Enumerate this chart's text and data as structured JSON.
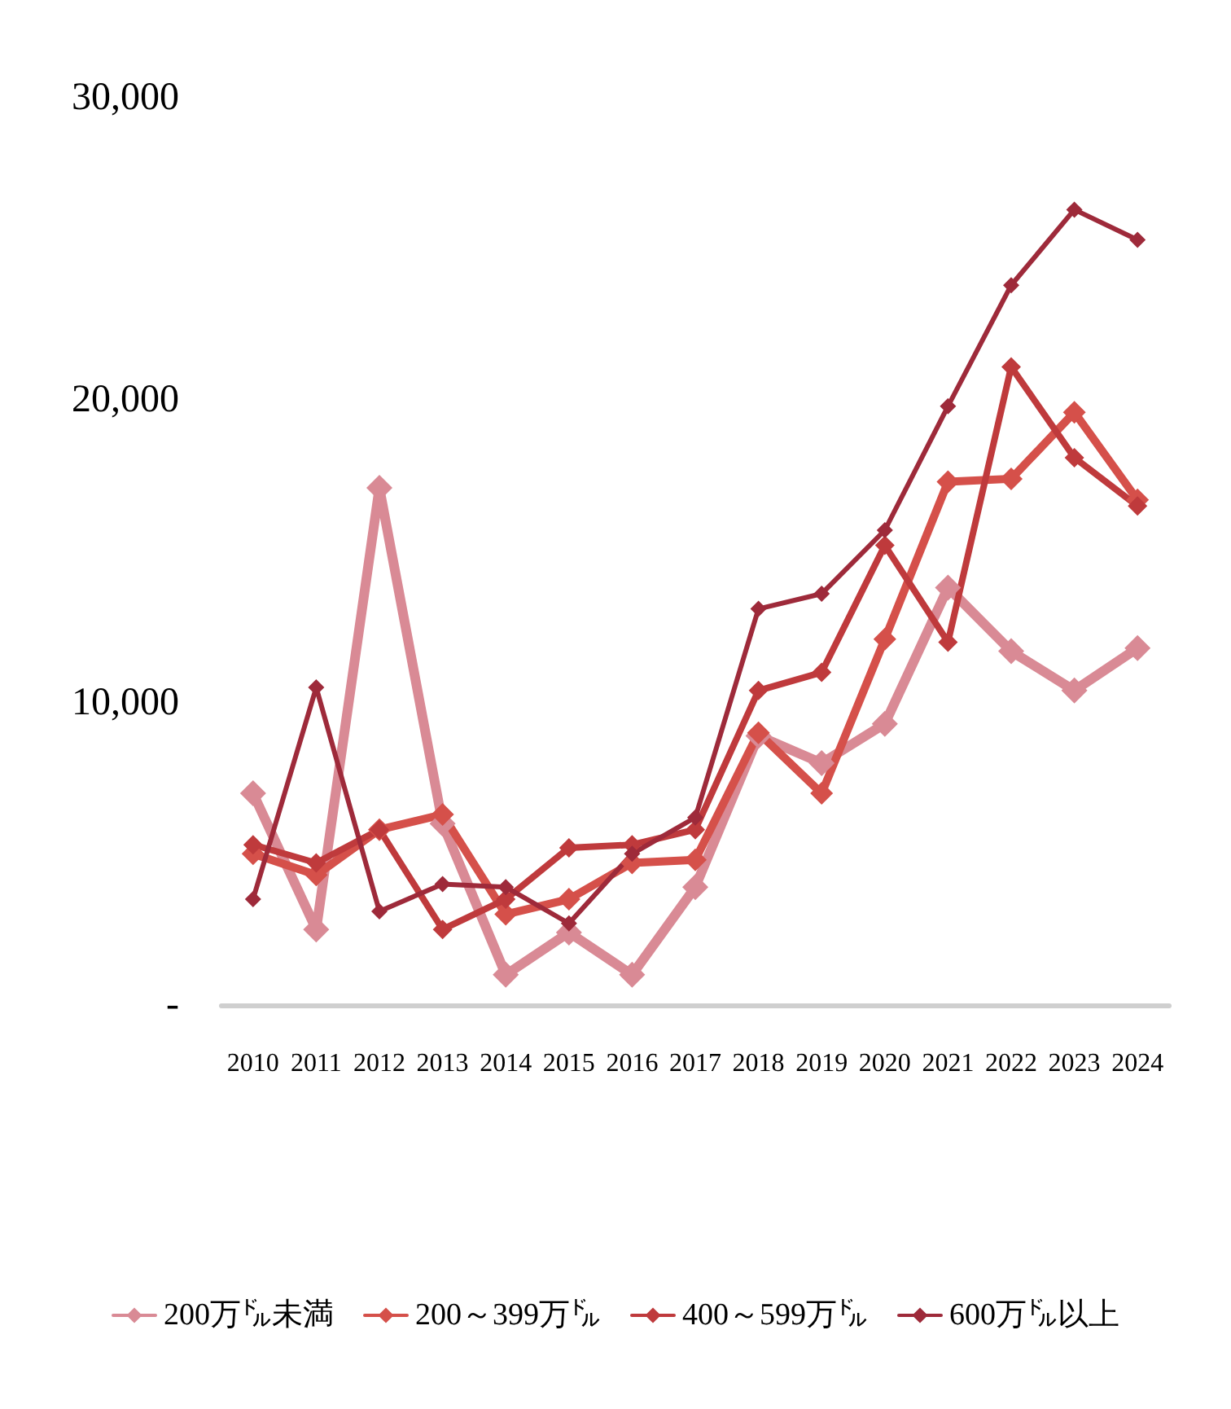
{
  "chart_data": {
    "type": "line",
    "categories": [
      "2010",
      "2011",
      "2012",
      "2013",
      "2014",
      "2015",
      "2016",
      "2017",
      "2018",
      "2019",
      "2020",
      "2021",
      "2022",
      "2023",
      "2024"
    ],
    "series": [
      {
        "name": "200万㌦未満",
        "color": "#d98a95",
        "values": [
          7000,
          2500,
          17100,
          6000,
          1000,
          2400,
          1000,
          3900,
          8900,
          8000,
          9300,
          13800,
          11700,
          10400,
          11800
        ]
      },
      {
        "name": "200～399万㌦",
        "color": "#d5504a",
        "values": [
          5000,
          4300,
          5800,
          6300,
          3000,
          3500,
          4700,
          4800,
          9000,
          7000,
          12100,
          17300,
          17400,
          19600,
          16700
        ]
      },
      {
        "name": "400～599万㌦",
        "color": "#bf3a3c",
        "values": [
          5300,
          4700,
          5800,
          2500,
          3500,
          5200,
          5300,
          5800,
          10400,
          11000,
          15200,
          12000,
          21100,
          18100,
          16500
        ]
      },
      {
        "name": "600万㌦以上",
        "color": "#9e2a3a",
        "values": [
          3500,
          10500,
          3100,
          4000,
          3900,
          2700,
          5000,
          6200,
          13100,
          13600,
          15700,
          19800,
          23800,
          26300,
          25300
        ]
      }
    ],
    "ylim": [
      0,
      30000
    ],
    "yticks": [
      {
        "value": 0,
        "label": "-"
      },
      {
        "value": 10000,
        "label": "10,000"
      },
      {
        "value": 20000,
        "label": "20,000"
      },
      {
        "value": 30000,
        "label": "30,000"
      }
    ],
    "grid": false,
    "legend": "bottom",
    "marker": "diamond",
    "line_style": "solid"
  }
}
